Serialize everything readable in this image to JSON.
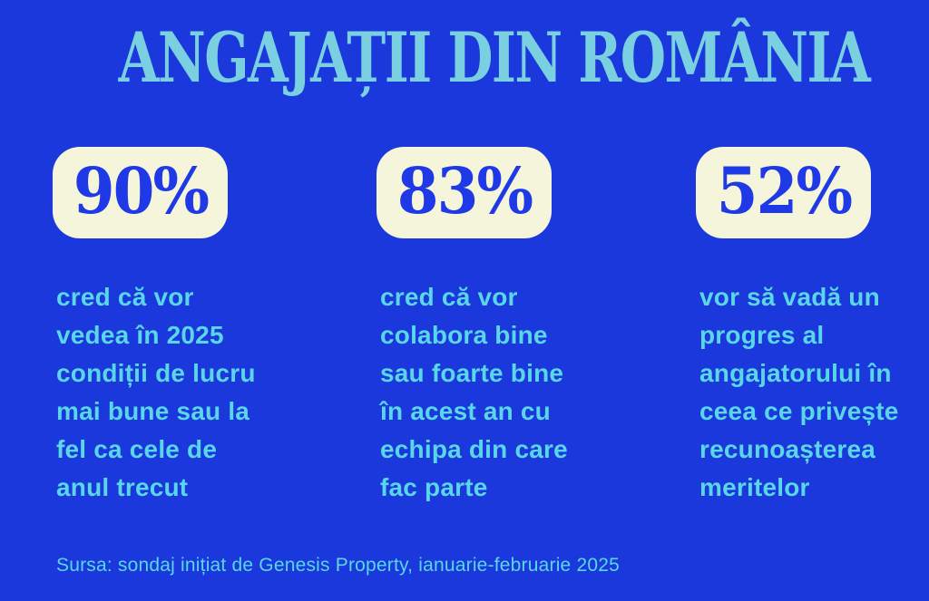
{
  "header": {
    "title": "ANGAJAȚII DIN ROMÂNIA"
  },
  "stats": [
    {
      "value": "90%",
      "description": "cred că vor\nvedea în 2025\ncondiții de lucru\nmai bune sau la\nfel ca cele de\nanul trecut"
    },
    {
      "value": "83%",
      "description": "cred că vor\ncolabora bine\nsau foarte bine\nîn acest an cu\nechipa din care\nfac parte"
    },
    {
      "value": "52%",
      "description": "vor să vadă un\nprogres al\nangajatorului în\nceea ce privește\nrecunoașterea\nmeritelor"
    }
  ],
  "footer": {
    "source": "Sursa: sondaj inițiat de Genesis Property, ianuarie-februarie 2025"
  },
  "colors": {
    "background": "#1a38dc",
    "title_text": "#7ad0e0",
    "body_text": "#59d7e9",
    "card_background": "#f4f5da",
    "stat_number": "#2039e6"
  },
  "chart_data": {
    "type": "table",
    "title": "ANGAJAȚII DIN ROMÂNIA",
    "categories": [
      "cred că vor vedea în 2025 condiții de lucru mai bune sau la fel ca cele de anul trecut",
      "cred că vor colabora bine sau foarte bine în acest an cu echipa din care fac parte",
      "vor să vadă un progres al angajatorului în ceea ce privește recunoașterea meritelor"
    ],
    "values": [
      90,
      83,
      52
    ],
    "unit": "%",
    "source": "Sursa: sondaj inițiat de Genesis Property, ianuarie-februarie 2025"
  }
}
